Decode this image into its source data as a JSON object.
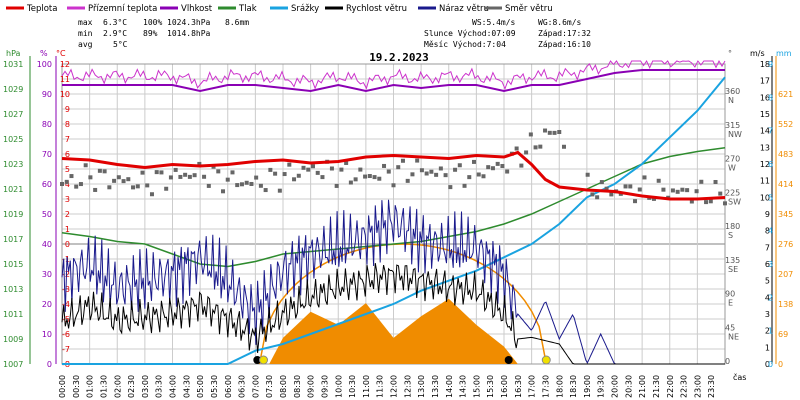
{
  "legend": [
    {
      "label": "Teplota",
      "color": "#e00000"
    },
    {
      "label": "Přízemní teplota",
      "color": "#cc33cc"
    },
    {
      "label": "Vlhkost",
      "color": "#8a00b4"
    },
    {
      "label": "Tlak",
      "color": "#2e8b2e"
    },
    {
      "label": "Srážky",
      "color": "#1aa3e0"
    },
    {
      "label": "Rychlost větru",
      "color": "#000000"
    },
    {
      "label": "Náraz větru",
      "color": "#1a1a8c"
    },
    {
      "label": "Směr větru",
      "color": "#666666"
    }
  ],
  "stats": {
    "max": {
      "label": "max",
      "temp": "6.3°C",
      "hum": "100%",
      "press": "1024.3hPa",
      "rain": "8.6mm"
    },
    "min": {
      "label": "min",
      "temp": "2.9°C",
      "hum": "89%",
      "press": "1014.8hPa"
    },
    "avg": {
      "label": "avg",
      "temp": "5°C"
    }
  },
  "info": {
    "ws": "WS:5.4m/s",
    "wg": "WG:8.6m/s",
    "sun_rise": "Slunce Východ:07:09",
    "sun_set": "Západ:17:32",
    "moon_rise": "Měsíc Východ:7:04",
    "moon_set": "Západ:16:10"
  },
  "colors": {
    "grid": "#cccccc",
    "zero": "#808080",
    "temp": "#e00000",
    "ground": "#cc33cc",
    "hum": "#8a00b4",
    "press": "#2e8b2e",
    "rain": "#1aa3e0",
    "wind": "#000000",
    "gust": "#1a1a8c",
    "dir": "#666666",
    "rainrate": "#f08c00",
    "sun": "#f0e000"
  },
  "chart_data": {
    "type": "line",
    "title": "19.2.2023",
    "xlabel": "čas",
    "x_ticks": [
      "00:00",
      "00:30",
      "01:00",
      "01:30",
      "02:00",
      "02:30",
      "03:00",
      "03:30",
      "04:00",
      "04:30",
      "05:00",
      "05:30",
      "06:00",
      "06:30",
      "07:00",
      "07:30",
      "08:00",
      "08:30",
      "09:00",
      "09:30",
      "10:00",
      "10:30",
      "11:00",
      "11:30",
      "12:00",
      "12:30",
      "13:00",
      "13:30",
      "14:00",
      "14:30",
      "15:00",
      "15:30",
      "16:00",
      "16:30",
      "17:00",
      "17:30",
      "18:00",
      "18:30",
      "19:00",
      "19:30",
      "20:00",
      "20:30",
      "21:00",
      "21:30",
      "22:00",
      "22:30",
      "23:00",
      "23:30"
    ],
    "axes": {
      "hpa": {
        "label": "hPa",
        "ticks": [
          1031,
          1029,
          1027,
          1025,
          1023,
          1021,
          1019,
          1017,
          1015,
          1013,
          1011,
          1009,
          1007
        ],
        "range": [
          1007,
          1031
        ]
      },
      "percent": {
        "label": "%",
        "ticks": [
          100,
          90,
          80,
          70,
          60,
          50,
          40,
          30,
          20,
          10,
          0
        ],
        "range": [
          0,
          100
        ]
      },
      "celsius": {
        "label": "°C",
        "ticks": [
          12,
          11,
          10,
          9,
          8,
          7,
          6,
          5,
          4,
          3,
          2,
          1,
          0,
          -1,
          -2,
          -3,
          -4,
          -5,
          -6,
          -7,
          -8
        ],
        "range": [
          -8,
          12
        ]
      },
      "degrees": {
        "label": "°",
        "ticks": [
          {
            "v": 360,
            "d": "N"
          },
          {
            "v": 315,
            "d": "NW"
          },
          {
            "v": 270,
            "d": "W"
          },
          {
            "v": 225,
            "d": "SW"
          },
          {
            "v": 180,
            "d": "S"
          },
          {
            "v": 135,
            "d": "SE"
          },
          {
            "v": 90,
            "d": "E"
          },
          {
            "v": 45,
            "d": "NE"
          },
          {
            "v": 0,
            "d": ""
          }
        ],
        "range": [
          0,
          400
        ]
      },
      "ms": {
        "label": "m/s",
        "ticks": [
          18,
          17,
          16,
          15,
          14,
          13,
          12,
          11,
          10,
          9,
          8,
          7,
          6,
          5,
          4,
          3,
          2,
          1,
          0
        ],
        "range": [
          0,
          18
        ]
      },
      "mm": {
        "label": "mm",
        "ticks": [
          9,
          8,
          7,
          6,
          5,
          4,
          3,
          2,
          1,
          0
        ],
        "range": [
          0,
          9
        ]
      },
      "rate": {
        "ticks": [
          621,
          552,
          483,
          414,
          345,
          276,
          207,
          138,
          69,
          0
        ],
        "range": [
          0,
          690
        ]
      }
    },
    "series": [
      {
        "name": "Teplota",
        "unit": "°C",
        "x": [
          0,
          1,
          2,
          3,
          4,
          5,
          6,
          7,
          8,
          9,
          10,
          11,
          12,
          13,
          14,
          15,
          16,
          16.5,
          17,
          17.5,
          18,
          19,
          20,
          21,
          22,
          23,
          24
        ],
        "values": [
          5.7,
          5.6,
          5.3,
          5.1,
          5.3,
          5.2,
          5.3,
          5.5,
          5.6,
          5.4,
          5.5,
          5.8,
          5.9,
          5.8,
          5.7,
          5.9,
          5.8,
          6.1,
          5.3,
          4.3,
          3.8,
          3.6,
          3.5,
          3.2,
          3.0,
          3.0,
          3.1
        ]
      },
      {
        "name": "Vlhkost",
        "unit": "%",
        "x": [
          0,
          1,
          2,
          3,
          4,
          5,
          6,
          7,
          8,
          9,
          10,
          11,
          12,
          13,
          14,
          15,
          16,
          17,
          18,
          19,
          20,
          21,
          22,
          24
        ],
        "values": [
          93,
          93,
          93,
          93,
          93,
          91,
          93,
          93,
          92,
          91,
          93,
          91,
          93,
          92,
          93,
          93,
          91,
          93,
          93,
          95,
          97,
          98,
          98,
          98
        ]
      },
      {
        "name": "Tlak",
        "unit": "hPa",
        "x": [
          0,
          1,
          2,
          3,
          4,
          5,
          6,
          7,
          8,
          9,
          10,
          11,
          12,
          13,
          14,
          15,
          16,
          17,
          18,
          19,
          20,
          21,
          22,
          23,
          24
        ],
        "values": [
          1017.5,
          1017.2,
          1016.8,
          1016.6,
          1015.8,
          1015.0,
          1014.8,
          1015.2,
          1015.8,
          1016.0,
          1016.2,
          1016.4,
          1016.6,
          1016.8,
          1017.2,
          1017.6,
          1018.2,
          1019.0,
          1020.0,
          1021.0,
          1022.0,
          1023.0,
          1023.6,
          1024.0,
          1024.3
        ]
      },
      {
        "name": "Srážky",
        "unit": "mm",
        "x": [
          0,
          6,
          7,
          8,
          9,
          10,
          11,
          12,
          13,
          14,
          15,
          16,
          17,
          18,
          19,
          20,
          21,
          22,
          23,
          24
        ],
        "values": [
          0,
          0,
          0.4,
          0.6,
          0.9,
          1.2,
          1.5,
          1.8,
          2.2,
          2.5,
          2.8,
          3.2,
          3.6,
          4.2,
          5.0,
          5.4,
          6.0,
          6.8,
          7.6,
          8.6
        ]
      },
      {
        "name": "Rychlost větru",
        "unit": "m/s",
        "x": [
          0,
          1,
          2,
          3,
          4,
          5,
          6,
          7,
          8,
          9,
          10,
          11,
          12,
          13,
          14,
          15,
          16,
          16.5,
          17,
          18,
          18.5,
          19,
          20,
          21,
          22,
          23,
          24
        ],
        "values": [
          2.5,
          3.5,
          2.6,
          2.8,
          3.0,
          3.6,
          2.7,
          1.6,
          3.0,
          4.0,
          4.6,
          5.0,
          5.4,
          5.0,
          4.6,
          4.4,
          3.0,
          1.5,
          1.6,
          1.2,
          0,
          0,
          0,
          0,
          0,
          0,
          0
        ]
      },
      {
        "name": "Náraz větru",
        "unit": "m/s",
        "x": [
          0,
          1,
          2,
          3,
          4,
          5,
          6,
          7,
          8,
          9,
          10,
          11,
          12,
          13,
          14,
          15,
          16,
          16.5,
          17,
          17.5,
          18,
          18.5,
          19,
          19.5,
          20,
          21,
          24
        ],
        "values": [
          5.2,
          6.0,
          4.6,
          5.0,
          5.4,
          6.4,
          5.0,
          3.0,
          5.6,
          6.6,
          7.0,
          7.6,
          8.6,
          7.4,
          7.0,
          7.0,
          5.4,
          3.0,
          2.0,
          3.8,
          1.5,
          3.0,
          0,
          1.8,
          0,
          0,
          0
        ]
      },
      {
        "name": "Směr větru",
        "unit": "°",
        "x": [
          0,
          1,
          2,
          3,
          4,
          5,
          6,
          7,
          8,
          9,
          10,
          11,
          12,
          13,
          14,
          15,
          16,
          17,
          17.5,
          18,
          19,
          20,
          21,
          22,
          23,
          24
        ],
        "values": [
          240,
          250,
          245,
          240,
          250,
          255,
          245,
          240,
          250,
          260,
          255,
          250,
          255,
          260,
          250,
          255,
          265,
          290,
          305,
          310,
          235,
          230,
          232,
          230,
          228,
          226
        ]
      },
      {
        "name": "Intenzita srážek",
        "x": [
          7.5,
          8,
          9,
          10,
          11,
          12,
          13,
          14,
          15,
          16,
          16.5
        ],
        "values": [
          0,
          60,
          120,
          90,
          140,
          60,
          110,
          150,
          90,
          40,
          0
        ]
      }
    ],
    "markers": {
      "sunrise": 7.15,
      "sunset": 17.53,
      "moonrise": 7.07,
      "moonset": 16.17
    }
  }
}
